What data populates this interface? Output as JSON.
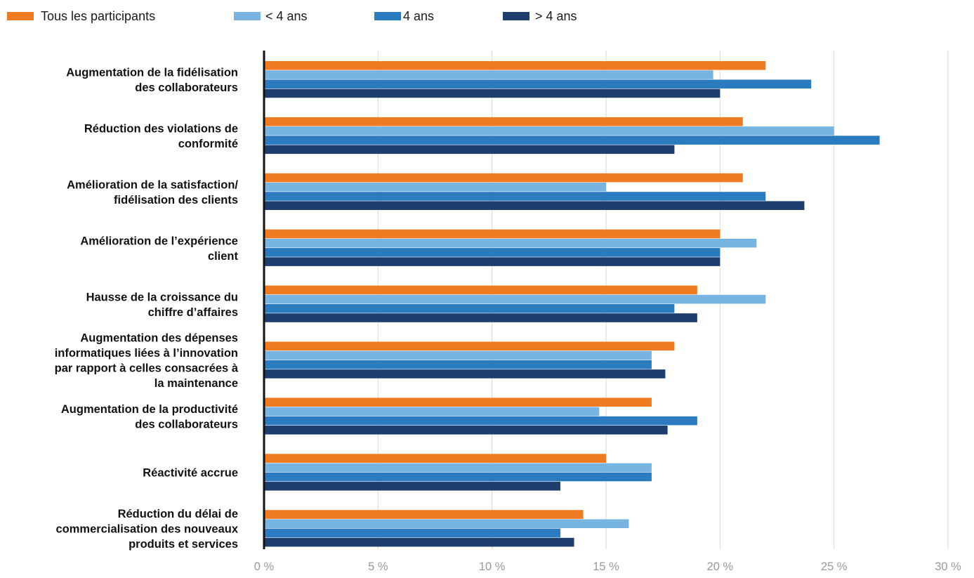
{
  "chart_data": {
    "type": "bar",
    "orientation": "horizontal",
    "xlim": [
      0,
      30
    ],
    "x_ticks": [
      "0 %",
      "5 %",
      "10 %",
      "15 %",
      "20 %",
      "25 %",
      "30 %"
    ],
    "x_tick_values": [
      0,
      5,
      10,
      15,
      20,
      25,
      30
    ],
    "grid": true,
    "legend_position": "top-left",
    "categories": [
      [
        "Augmentation de la fidélisation",
        "des collaborateurs"
      ],
      [
        "Réduction des violations de",
        "conformité"
      ],
      [
        "Amélioration de la satisfaction/",
        "fidélisation des clients"
      ],
      [
        "Amélioration de l’expérience",
        "client"
      ],
      [
        "Hausse de la croissance du",
        "chiffre d’affaires"
      ],
      [
        "Augmentation des dépenses",
        "informatiques liées à l’innovation",
        "par rapport à celles consacrées à",
        "la maintenance"
      ],
      [
        "Augmentation de la productivité",
        "des collaborateurs"
      ],
      [
        "Réactivité accrue"
      ],
      [
        "Réduction du délai de",
        "commercialisation des nouveaux",
        "produits et services"
      ]
    ],
    "series": [
      {
        "name": "Tous les participants",
        "color": "#F07A20",
        "values": [
          22,
          21,
          21,
          20,
          19,
          18,
          17,
          15,
          14
        ]
      },
      {
        "name": "< 4 ans",
        "color": "#78B4E2",
        "values": [
          19.7,
          25,
          15,
          21.6,
          22,
          17,
          14.7,
          17,
          16
        ]
      },
      {
        "name": "4 ans",
        "color": "#2B7BC0",
        "values": [
          24,
          27,
          22,
          20,
          18,
          17,
          19,
          17,
          13
        ]
      },
      {
        "name": "> 4 ans",
        "color": "#1D3F6E",
        "values": [
          20,
          18,
          23.7,
          20,
          19,
          17.6,
          17.7,
          13,
          13.6
        ]
      }
    ]
  }
}
